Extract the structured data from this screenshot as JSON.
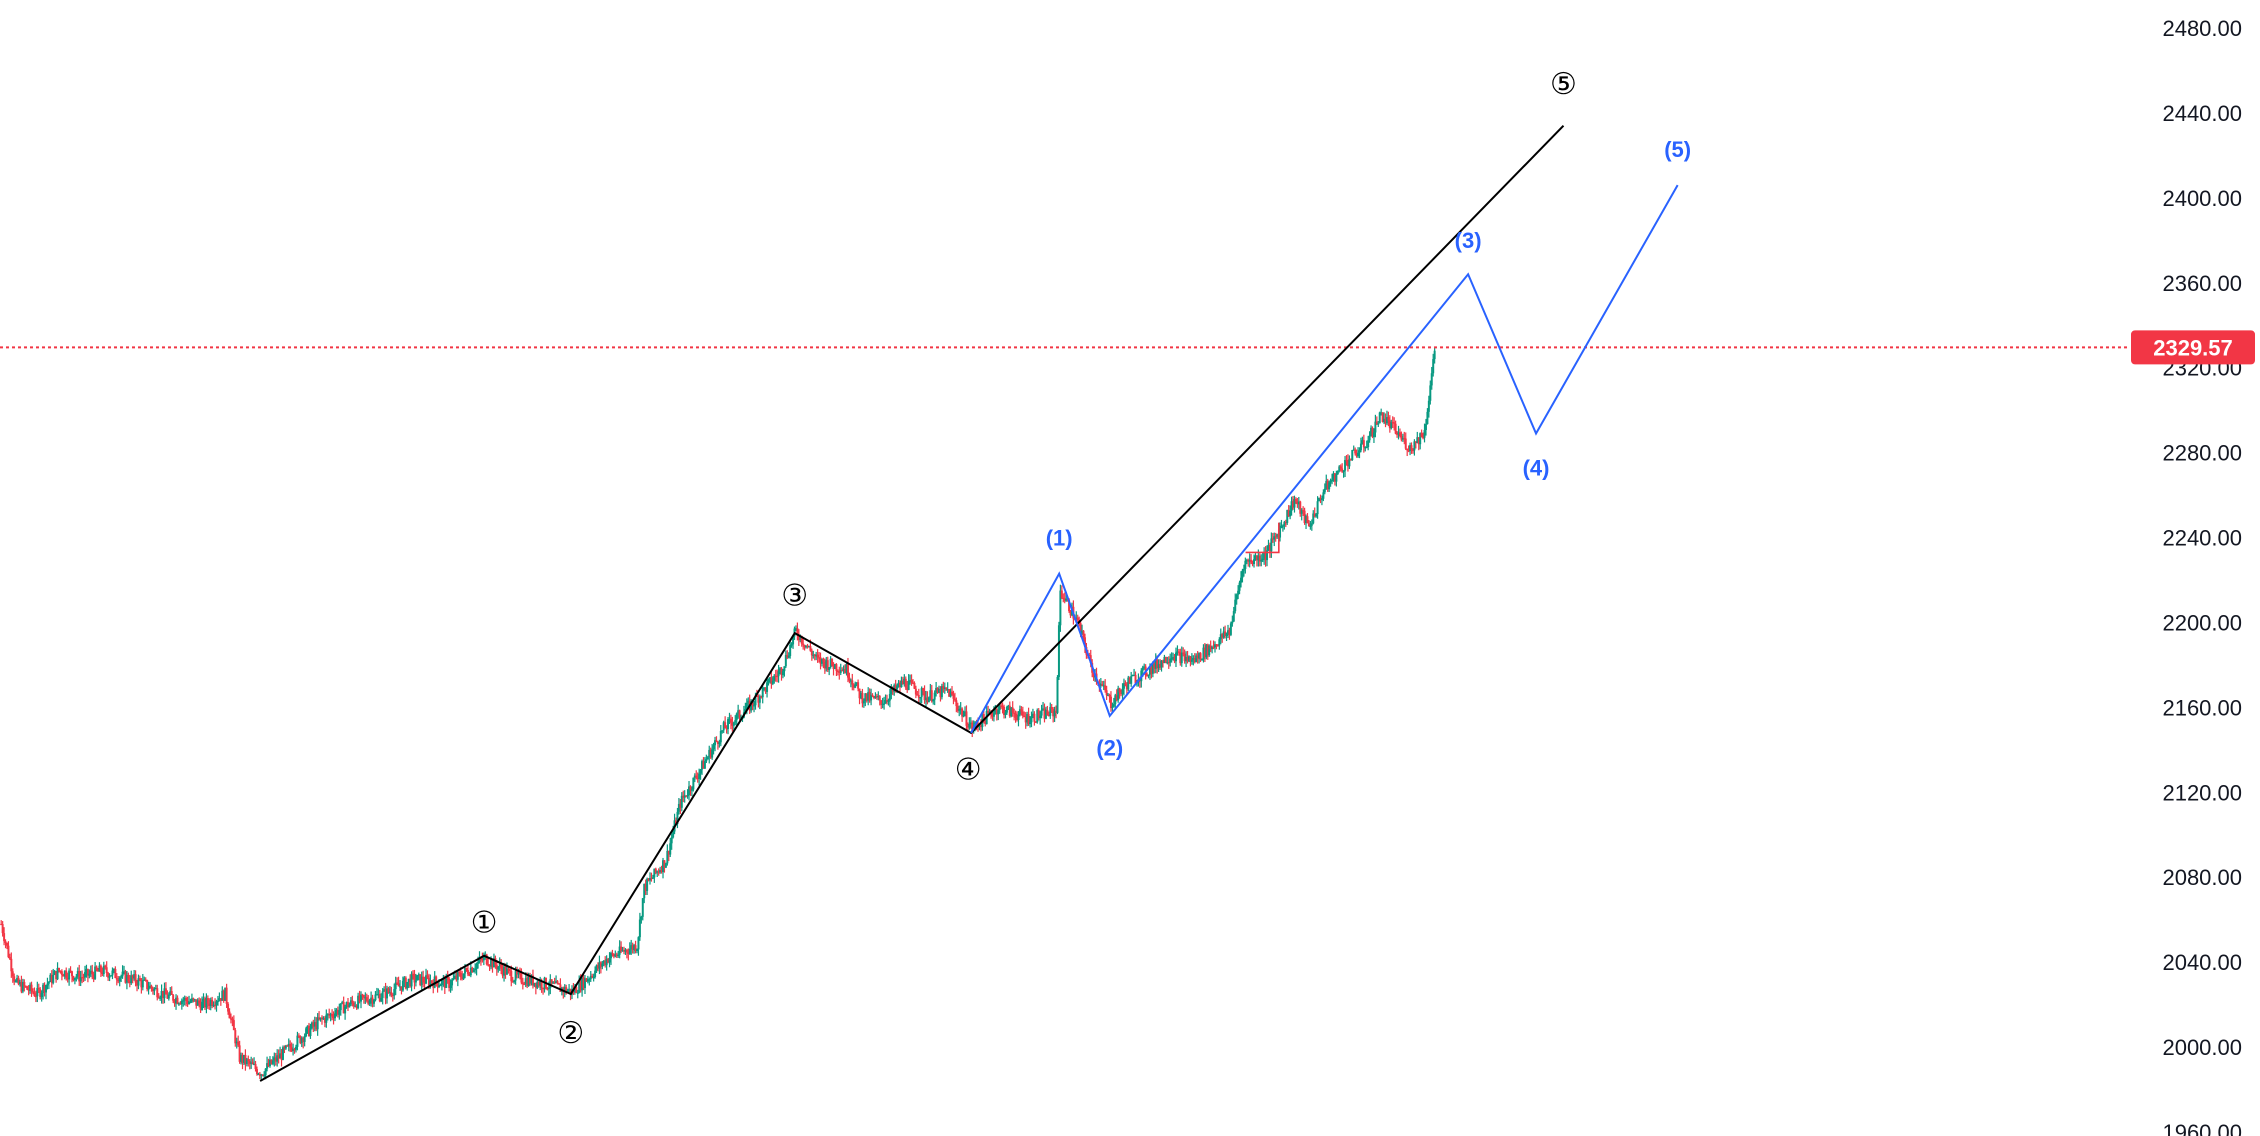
{
  "chart_data": {
    "type": "candlestick",
    "title": "",
    "xlabel": "",
    "ylabel": "",
    "ylim": [
      1955,
      2490
    ],
    "y_axis_ticks": [
      "1960.00",
      "2000.00",
      "2040.00",
      "2080.00",
      "2120.00",
      "2160.00",
      "2200.00",
      "2240.00",
      "2280.00",
      "2320.00",
      "2360.00",
      "2400.00",
      "2440.00",
      "2480.00"
    ],
    "last_price": "2329.57",
    "colors": {
      "up": "#089981",
      "down": "#f23645",
      "last_price": "#f23645",
      "major_wave": "#000000",
      "minor_wave": "#2962ff",
      "axis_text": "#131722"
    },
    "price_path": [
      [
        0,
        2058
      ],
      [
        10,
        2030
      ],
      [
        25,
        2025
      ],
      [
        40,
        2036
      ],
      [
        55,
        2033
      ],
      [
        70,
        2036
      ],
      [
        95,
        2031
      ],
      [
        115,
        2024
      ],
      [
        140,
        2020
      ],
      [
        155,
        2025
      ],
      [
        165,
        1995
      ],
      [
        180,
        1988
      ],
      [
        200,
        2000
      ],
      [
        220,
        2012
      ],
      [
        240,
        2020
      ],
      [
        265,
        2025
      ],
      [
        285,
        2032
      ],
      [
        310,
        2030
      ],
      [
        335,
        2042
      ],
      [
        355,
        2033
      ],
      [
        375,
        2030
      ],
      [
        395,
        2026
      ],
      [
        405,
        2032
      ],
      [
        420,
        2042
      ],
      [
        440,
        2048
      ],
      [
        445,
        2075
      ],
      [
        460,
        2088
      ],
      [
        470,
        2115
      ],
      [
        485,
        2132
      ],
      [
        500,
        2150
      ],
      [
        520,
        2162
      ],
      [
        540,
        2178
      ],
      [
        550,
        2196
      ],
      [
        565,
        2182
      ],
      [
        585,
        2178
      ],
      [
        595,
        2165
      ],
      [
        610,
        2163
      ],
      [
        625,
        2172
      ],
      [
        640,
        2165
      ],
      [
        655,
        2168
      ],
      [
        672,
        2150
      ],
      [
        690,
        2160
      ],
      [
        710,
        2155
      ],
      [
        730,
        2158
      ],
      [
        733,
        2215
      ],
      [
        745,
        2200
      ],
      [
        755,
        2178
      ],
      [
        768,
        2162
      ],
      [
        780,
        2172
      ],
      [
        795,
        2178
      ],
      [
        810,
        2185
      ],
      [
        825,
        2182
      ],
      [
        840,
        2190
      ],
      [
        850,
        2196
      ],
      [
        860,
        2228
      ],
      [
        875,
        2232
      ],
      [
        885,
        2244
      ],
      [
        895,
        2258
      ],
      [
        905,
        2245
      ],
      [
        915,
        2262
      ],
      [
        930,
        2275
      ],
      [
        945,
        2285
      ],
      [
        955,
        2298
      ],
      [
        965,
        2290
      ],
      [
        975,
        2282
      ],
      [
        985,
        2290
      ],
      [
        992,
        2328
      ]
    ],
    "major_wave": {
      "points": [
        [
          180,
          1984
        ],
        [
          335,
          2043
        ],
        [
          395,
          2025
        ],
        [
          550,
          2195
        ],
        [
          672,
          2148
        ],
        [
          1082,
          2434
        ]
      ],
      "labels": [
        {
          "text": "①",
          "x": 335,
          "y": 2058
        },
        {
          "text": "②",
          "x": 395,
          "y": 2006
        },
        {
          "text": "③",
          "x": 550,
          "y": 2212
        },
        {
          "text": "④",
          "x": 670,
          "y": 2130
        },
        {
          "text": "⑤",
          "x": 1082,
          "y": 2453
        }
      ]
    },
    "minor_wave": {
      "points": [
        [
          672,
          2148
        ],
        [
          733,
          2223
        ],
        [
          768,
          2156
        ],
        [
          1016,
          2364
        ],
        [
          1063,
          2289
        ],
        [
          1161,
          2406
        ]
      ],
      "labels": [
        {
          "text": "(1)",
          "x": 733,
          "y": 2239
        },
        {
          "text": "(2)",
          "x": 768,
          "y": 2140
        },
        {
          "text": "(3)",
          "x": 1016,
          "y": 2379
        },
        {
          "text": "(4)",
          "x": 1063,
          "y": 2272
        },
        {
          "text": "(5)",
          "x": 1161,
          "y": 2422
        }
      ]
    },
    "connector_segment": [
      [
        862,
        2233
      ],
      [
        885,
        2233
      ],
      [
        885,
        2247
      ]
    ]
  }
}
